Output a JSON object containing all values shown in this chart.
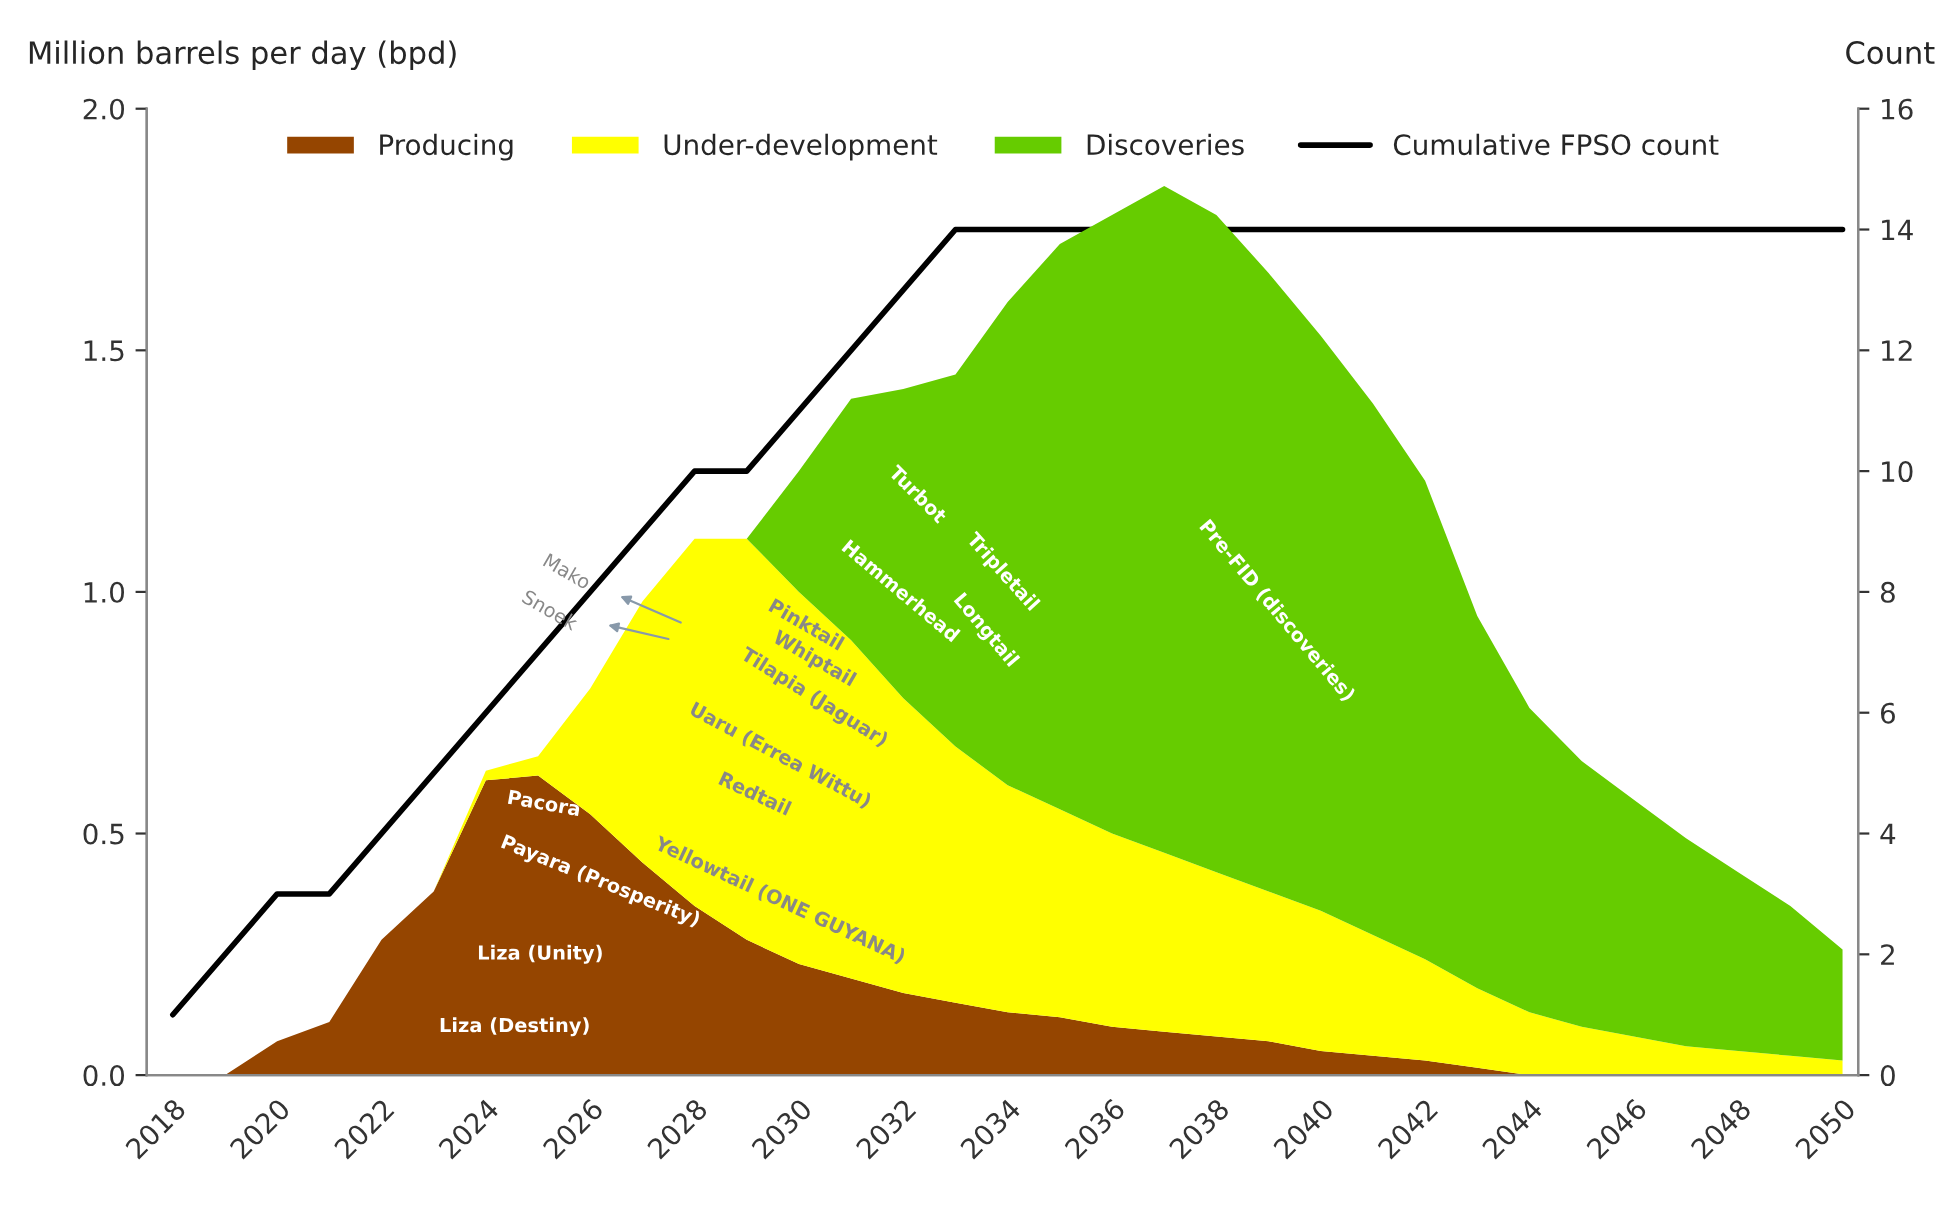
{
  "chart_data": {
    "type": "area",
    "stacked": true,
    "ylabel": "Million barrels per day (bpd)",
    "y2label": "Count",
    "x": [
      2019,
      2020,
      2021,
      2022,
      2023,
      2024,
      2025,
      2026,
      2027,
      2028,
      2029,
      2030,
      2031,
      2032,
      2033,
      2034,
      2035,
      2036,
      2037,
      2038,
      2039,
      2040,
      2041,
      2042,
      2043,
      2044,
      2045,
      2046,
      2047,
      2048,
      2049,
      2050
    ],
    "series": [
      {
        "name": "Producing",
        "color": "#954500",
        "values": [
          0,
          0.07,
          0.11,
          0.28,
          0.38,
          0.61,
          0.62,
          0.54,
          0.44,
          0.35,
          0.28,
          0.23,
          0.2,
          0.17,
          0.15,
          0.13,
          0.12,
          0.1,
          0.09,
          0.08,
          0.07,
          0.05,
          0.04,
          0.03,
          0.015,
          0,
          0,
          0,
          0,
          0,
          0,
          0
        ]
      },
      {
        "name": "Under-development",
        "color": "#ffff00",
        "values": [
          0,
          0,
          0,
          0,
          0,
          0.02,
          0.04,
          0.26,
          0.54,
          0.76,
          0.83,
          0.77,
          0.7,
          0.61,
          0.53,
          0.47,
          0.43,
          0.4,
          0.37,
          0.34,
          0.31,
          0.29,
          0.25,
          0.21,
          0.165,
          0.13,
          0.1,
          0.08,
          0.06,
          0.05,
          0.04,
          0.03
        ]
      },
      {
        "name": "Discoveries",
        "color": "#66cc00",
        "values": [
          0,
          0,
          0,
          0,
          0,
          0,
          0,
          0,
          0,
          0,
          0,
          0.25,
          0.5,
          0.64,
          0.77,
          1.0,
          1.17,
          1.28,
          1.38,
          1.36,
          1.28,
          1.19,
          1.1,
          0.99,
          0.77,
          0.63,
          0.55,
          0.49,
          0.43,
          0.37,
          0.31,
          0.23
        ]
      },
      {
        "name": "Cumulative FPSO count",
        "type": "line",
        "axis": "y2",
        "color": "#000000",
        "x": [
          2018,
          2020,
          2021,
          2028,
          2029,
          2033,
          2050
        ],
        "values": [
          1,
          3,
          3,
          10,
          10,
          14,
          14
        ]
      }
    ],
    "xlim": [
      2017.5,
      2050.3
    ],
    "xticks": [
      2018,
      2020,
      2022,
      2024,
      2026,
      2028,
      2030,
      2032,
      2034,
      2036,
      2038,
      2040,
      2042,
      2044,
      2046,
      2048,
      2050
    ],
    "ylim": [
      0,
      2.0
    ],
    "yticks": [
      {
        "value": 0,
        "label": "0.0"
      },
      {
        "value": 0.5,
        "label": "0.5"
      },
      {
        "value": 1.0,
        "label": "1.0"
      },
      {
        "value": 1.5,
        "label": "1.5"
      },
      {
        "value": 2.0,
        "label": "2.0"
      }
    ],
    "y2lim": [
      0,
      16
    ],
    "y2ticks": [
      0,
      2,
      4,
      6,
      8,
      10,
      12,
      14,
      16
    ],
    "grid": false,
    "legend": "top",
    "annotations": [
      "Liza (Destiny)",
      "Liza (Unity)",
      "Payara (Prosperity)",
      "Pacora",
      "Yellowtail (ONE GUYANA)",
      "Redtail",
      "Uaru (Errea Wittu)",
      "Tilapia (Jaguar)",
      "Whiptail",
      "Pinktail",
      "Mako",
      "Snoek",
      "Hammerhead",
      "Turbot",
      "Longtail",
      "Tripletail",
      "Pre-FID (discoveries)"
    ]
  }
}
